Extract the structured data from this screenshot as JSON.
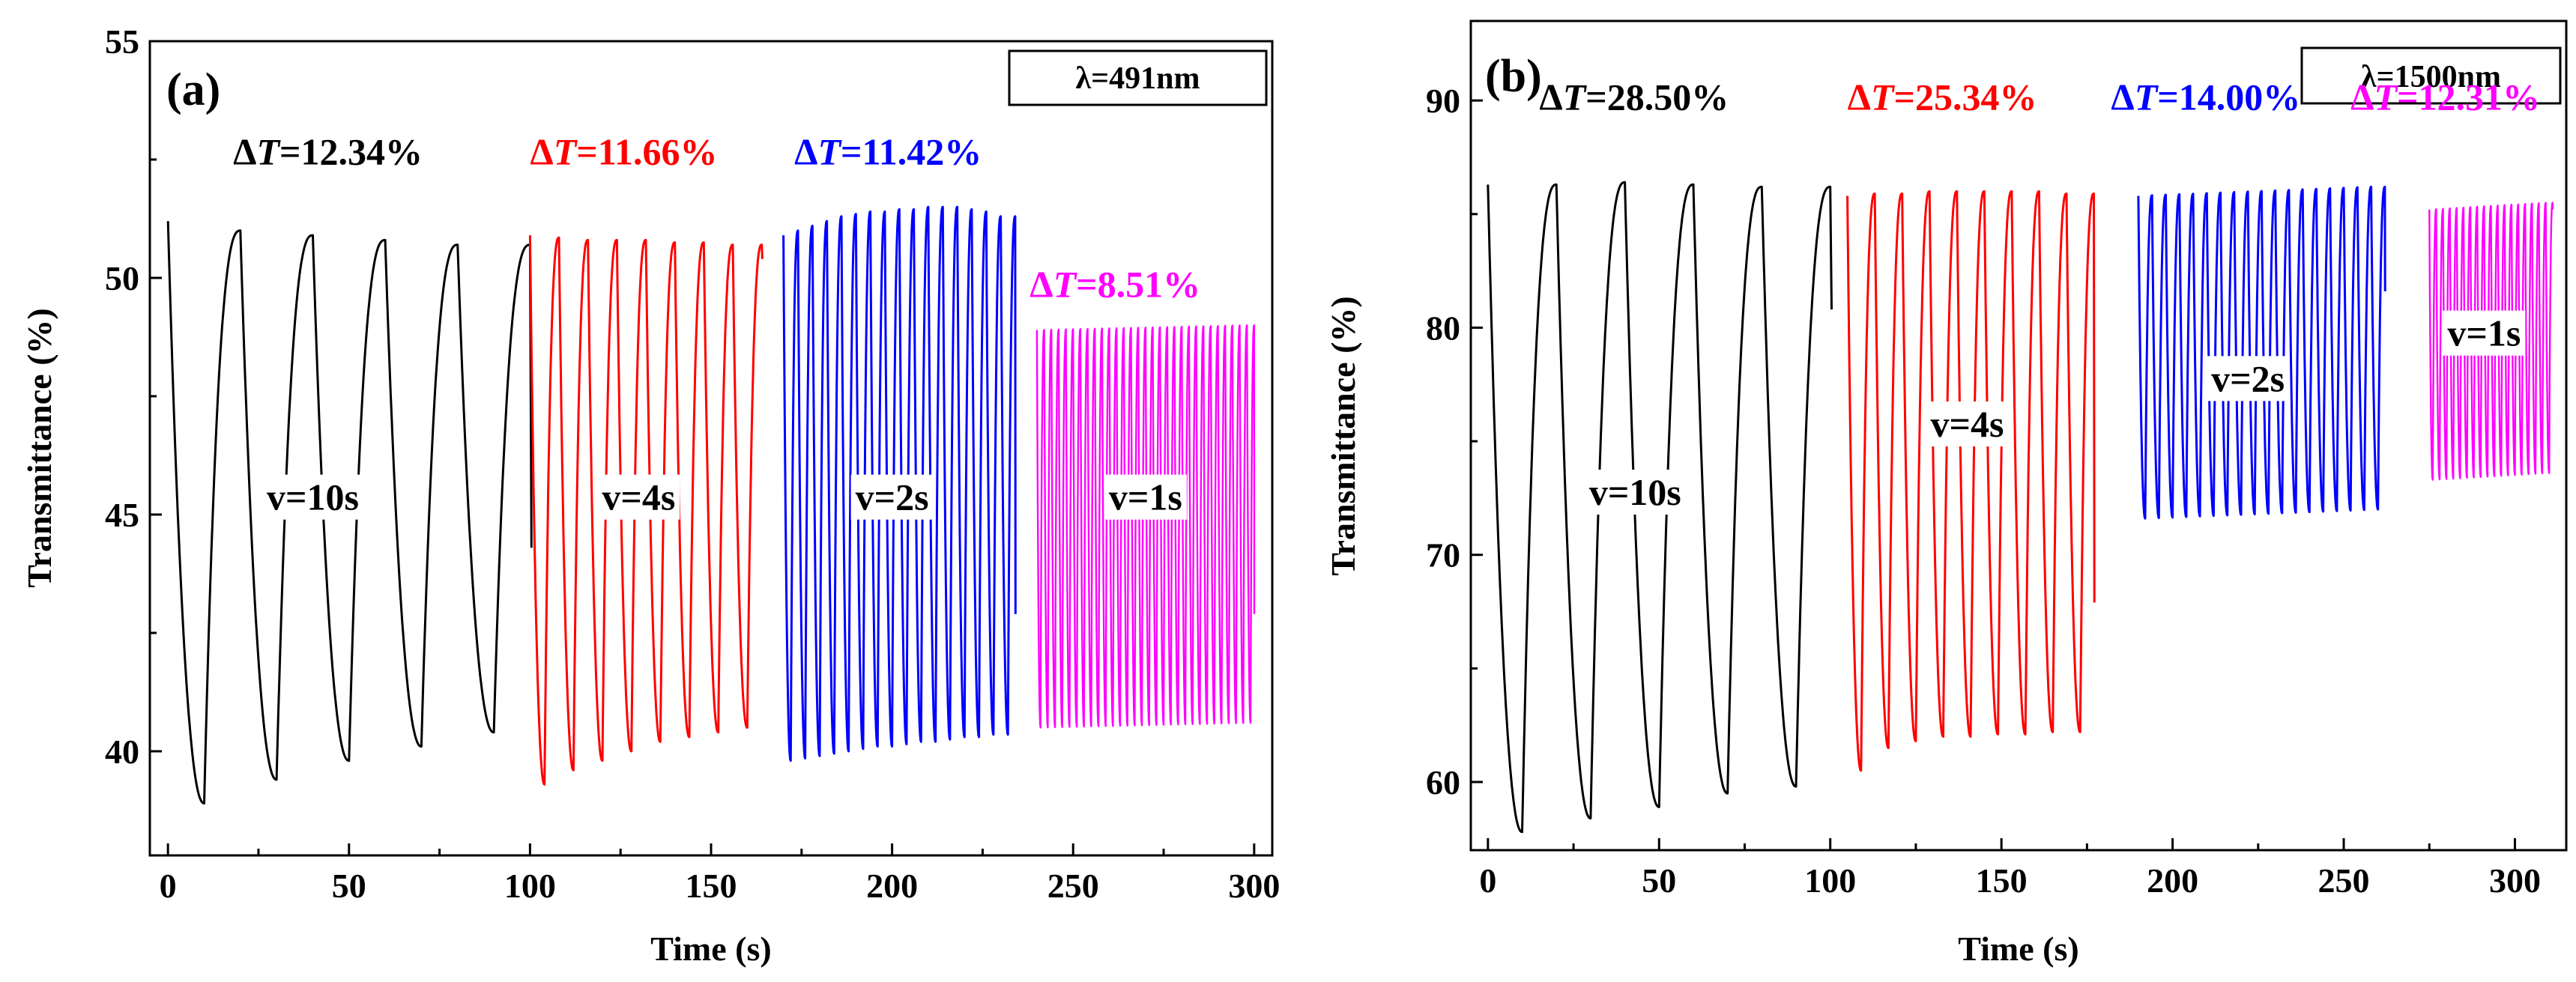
{
  "chart_data": [
    {
      "type": "line",
      "panel_label": "(a)",
      "wavelength_label": "λ=491nm",
      "xlabel": "Time (s)",
      "ylabel": "Transmittance (%)",
      "xlim": [
        -5,
        305
      ],
      "ylim": [
        37.8,
        55
      ],
      "xticks": [
        0,
        50,
        100,
        150,
        200,
        250,
        300
      ],
      "xtick_labels": [
        "0",
        "50",
        "100",
        "150",
        "200",
        "250",
        "300"
      ],
      "yticks": [
        40,
        45,
        50,
        55
      ],
      "ytick_labels": [
        "40",
        "45",
        "50",
        "55"
      ],
      "series": [
        {
          "name": "v=10s",
          "color": "#000000",
          "t_start": 0,
          "t_end": 90,
          "period": 20,
          "max": [
            51.2,
            51.0,
            50.9,
            50.8,
            50.7
          ],
          "min": [
            38.9,
            39.4,
            39.8,
            40.1,
            40.4
          ],
          "end_value": 44.3,
          "annotation": {
            "delta_label": "ΔT",
            "delta_value": "=12.34%",
            "delta_at": [
              18,
              52.4
            ],
            "speed_label": "v=10s",
            "speed_at": [
              40,
              45.1
            ]
          }
        },
        {
          "name": "v=4s",
          "color": "#ff0000",
          "t_start": 100,
          "t_end": 160,
          "period": 8,
          "max": [
            50.9,
            50.85,
            50.8,
            50.8,
            50.8,
            50.75,
            50.75,
            50.7
          ],
          "min": [
            39.3,
            39.6,
            39.8,
            40.0,
            40.2,
            40.3,
            40.4,
            40.5
          ],
          "end_value": 50.4,
          "annotation": {
            "delta_label": "ΔT",
            "delta_value": "=11.66%",
            "delta_at": [
              100,
              52.4
            ],
            "speed_label": "v=4s",
            "speed_at": [
              130,
              45.1
            ]
          }
        },
        {
          "name": "v=2s",
          "color": "#0000ff",
          "t_start": 170,
          "t_end": 232,
          "period": 4,
          "max": [
            50.9,
            51.0,
            51.1,
            51.2,
            51.3,
            51.35,
            51.4,
            51.4,
            51.45,
            51.45,
            51.5,
            51.5,
            51.5,
            51.45,
            51.4,
            51.3
          ],
          "min": [
            39.8,
            39.85,
            39.9,
            39.95,
            40.0,
            40.05,
            40.1,
            40.1,
            40.15,
            40.2,
            40.2,
            40.25,
            40.3,
            40.3,
            40.35,
            40.35
          ],
          "end_value": 42.9,
          "annotation": {
            "delta_label": "ΔT",
            "delta_value": "=11.42%",
            "delta_at": [
              173,
              52.4
            ],
            "speed_label": "v=2s",
            "speed_at": [
              200,
              45.1
            ]
          }
        },
        {
          "name": "v=1s",
          "color": "#ff00ff",
          "t_start": 240,
          "t_end": 300,
          "period": 2,
          "max": [
            48.9,
            49.0
          ],
          "min": [
            40.5,
            40.6
          ],
          "end_value": 42.9,
          "annotation": {
            "delta_label": "ΔT",
            "delta_value": "=8.51%",
            "delta_at": [
              238,
              49.6
            ],
            "speed_label": "v=1s",
            "speed_at": [
              270,
              45.1
            ]
          }
        }
      ]
    },
    {
      "type": "line",
      "panel_label": "(b)",
      "wavelength_label": "λ=1500nm",
      "xlabel": "Time (s)",
      "ylabel": "Transmittance (%)",
      "xlim": [
        -5,
        315
      ],
      "ylim": [
        57,
        93.5
      ],
      "xticks": [
        0,
        50,
        100,
        150,
        200,
        250,
        300
      ],
      "xtick_labels": [
        "0",
        "50",
        "100",
        "150",
        "200",
        "250",
        "300"
      ],
      "yticks": [
        60,
        70,
        80,
        90
      ],
      "ytick_labels": [
        "60",
        "70",
        "80",
        "90"
      ],
      "series": [
        {
          "name": "v=10s",
          "color": "#000000",
          "t_start": 0,
          "t_end": 90,
          "period": 20,
          "max": [
            86.3,
            86.3,
            86.4,
            86.3,
            86.2
          ],
          "min": [
            57.8,
            58.4,
            58.9,
            59.5,
            59.8
          ],
          "end_value": 80.8,
          "annotation": {
            "delta_label": "ΔT",
            "delta_value": "=28.50%",
            "delta_at": [
              15,
              89.6
            ],
            "speed_label": "v=10s",
            "speed_at": [
              43,
              72.2
            ]
          }
        },
        {
          "name": "v=4s",
          "color": "#ff0000",
          "t_start": 105,
          "t_end": 175,
          "period": 8,
          "max": [
            85.8,
            85.9,
            85.9,
            86.0,
            86.0,
            86.0,
            86.0,
            86.0,
            85.9
          ],
          "min": [
            60.5,
            61.5,
            61.8,
            62.0,
            62.0,
            62.1,
            62.1,
            62.2,
            62.2
          ],
          "end_value": 67.9,
          "annotation": {
            "delta_label": "ΔT",
            "delta_value": "=25.34%",
            "delta_at": [
              105,
              89.6
            ],
            "speed_label": "v=4s",
            "speed_at": [
              140,
              75.2
            ]
          }
        },
        {
          "name": "v=2s",
          "color": "#0000ff",
          "t_start": 190,
          "t_end": 260,
          "period": 4,
          "max": [
            85.8,
            86.2
          ],
          "min": [
            71.6,
            72.0
          ],
          "end_value": 81.6,
          "annotation": {
            "delta_label": "ΔT",
            "delta_value": "=14.00%",
            "delta_at": [
              182,
              89.6
            ],
            "speed_label": "v=2s",
            "speed_at": [
              222,
              77.2
            ]
          }
        },
        {
          "name": "v=1s",
          "color": "#ff00ff",
          "t_start": 275,
          "t_end": 310,
          "period": 2,
          "max": [
            85.2,
            85.5
          ],
          "min": [
            73.3,
            73.6
          ],
          "end_value": 85.2,
          "annotation": {
            "delta_label": "ΔT",
            "delta_value": "=12.31%",
            "delta_at": [
              252,
              89.6
            ],
            "speed_label": "v=1s",
            "speed_at": [
              291,
              79.2
            ]
          }
        }
      ]
    }
  ]
}
